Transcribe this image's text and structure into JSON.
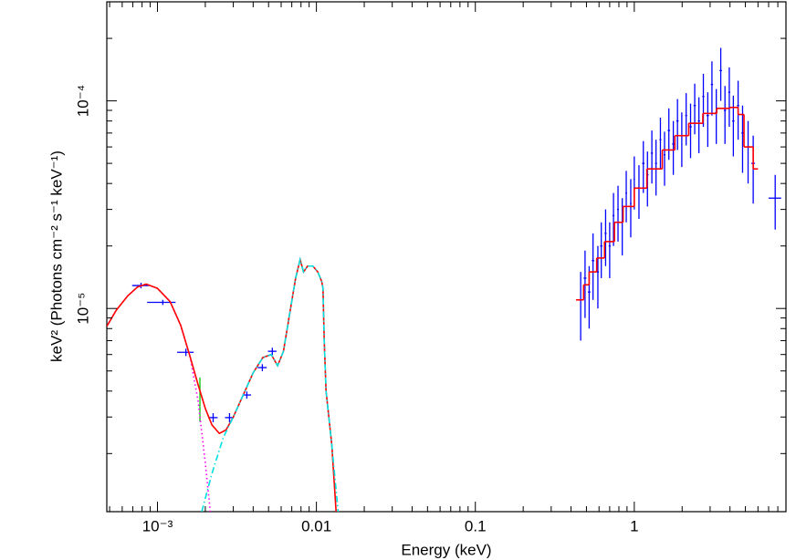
{
  "chart_data": {
    "type": "spectrum",
    "xlabel": "Energy (keV)",
    "ylabel": "keV² (Photons cm⁻² s⁻¹ keV⁻¹)",
    "xscale": "log",
    "yscale": "log",
    "xlim": [
      0.00048,
      9
    ],
    "ylim": [
      1.05e-06,
      0.0003
    ],
    "xticks": [
      {
        "value": 0.001,
        "label": "10⁻³"
      },
      0.01,
      0.1,
      1
    ],
    "yticks": [
      {
        "value": 1e-05,
        "label": "10⁻⁵"
      },
      {
        "value": 0.0001,
        "label": "10⁻⁴"
      }
    ],
    "xminor": [
      0.0005,
      0.0006,
      0.0007,
      0.0008,
      0.0009,
      0.002,
      0.003,
      0.004,
      0.005,
      0.006,
      0.007,
      0.008,
      0.009,
      0.02,
      0.03,
      0.04,
      0.05,
      0.06,
      0.07,
      0.08,
      0.09,
      0.2,
      0.3,
      0.4,
      0.5,
      0.6,
      0.7,
      0.8,
      0.9,
      2,
      3,
      4,
      5,
      6,
      7,
      8
    ],
    "yminor": [
      2e-06,
      3e-06,
      4e-06,
      5e-06,
      6e-06,
      7e-06,
      8e-06,
      9e-06,
      2e-05,
      3e-05,
      4e-05,
      5e-05,
      6e-05,
      7e-05,
      8e-05,
      9e-05,
      0.0002
    ],
    "series": [
      {
        "kind": "line",
        "color": "#ff00ff",
        "dash": "dotted",
        "x": [
          0.00048,
          0.00055,
          0.00065,
          0.00075,
          0.00085,
          0.001,
          0.0012,
          0.0014,
          0.0016,
          0.0018,
          0.002,
          0.00215
        ],
        "values": [
          8.2e-06,
          9.8e-06,
          1.15e-05,
          1.27e-05,
          1.31e-05,
          1.25e-05,
          1.08e-05,
          8.3e-06,
          5.9e-06,
          3.6e-06,
          1.8e-06,
          1.05e-06
        ]
      },
      {
        "kind": "line",
        "color": "#ff0000",
        "dash": "solid",
        "x": [
          0.00048,
          0.00055,
          0.00065,
          0.00075,
          0.00085,
          0.001,
          0.0012,
          0.0014,
          0.0016,
          0.0018,
          0.002,
          0.0022,
          0.00245,
          0.0027,
          0.003,
          0.0035,
          0.004,
          0.0046,
          0.0052,
          0.0057,
          0.0062,
          0.0068,
          0.0074,
          0.0079,
          0.0083,
          0.0088,
          0.0095,
          0.0102,
          0.0108,
          0.011,
          0.0112,
          0.0115,
          0.0125,
          0.0133
        ],
        "values": [
          8.2e-06,
          9.8e-06,
          1.15e-05,
          1.27e-05,
          1.31e-05,
          1.25e-05,
          1.08e-05,
          8.3e-06,
          5.9e-06,
          4.3e-06,
          3.3e-06,
          2.75e-06,
          2.5e-06,
          2.6e-06,
          3e-06,
          3.9e-06,
          4.9e-06,
          5.8e-06,
          6e-06,
          5.3e-06,
          6.2e-06,
          9.5e-06,
          1.4e-05,
          1.72e-05,
          1.5e-05,
          1.6e-05,
          1.6e-05,
          1.5e-05,
          1.35e-05,
          1.25e-05,
          7e-06,
          4e-06,
          2.2e-06,
          1.05e-06
        ]
      },
      {
        "kind": "line",
        "color": "#00e0e0",
        "dash": "dashdot",
        "x": [
          0.0019,
          0.0022,
          0.0026,
          0.003,
          0.0035,
          0.004,
          0.0046,
          0.0052,
          0.0057,
          0.0062,
          0.0068,
          0.0074,
          0.0079,
          0.0083,
          0.0088,
          0.0095,
          0.0102,
          0.0108,
          0.011,
          0.0112,
          0.0115,
          0.0125,
          0.0137
        ],
        "values": [
          1.05e-06,
          1.6e-06,
          2.4e-06,
          3e-06,
          3.9e-06,
          4.9e-06,
          5.8e-06,
          6e-06,
          5.3e-06,
          6.2e-06,
          9.5e-06,
          1.4e-05,
          1.72e-05,
          1.5e-05,
          1.6e-05,
          1.6e-05,
          1.5e-05,
          1.35e-05,
          1.25e-05,
          7e-06,
          4e-06,
          2.2e-06,
          1.05e-06
        ]
      },
      {
        "kind": "errorbar",
        "color": "#0000ff",
        "x": [
          0.000788,
          0.00108,
          0.00151,
          0.00224,
          0.00284,
          0.00365,
          0.00457,
          0.00528
        ],
        "xerr": [
          9.5e-05,
          0.00022,
          0.00018,
          0.00015,
          0.00018,
          0.00023,
          0.0003,
          0.00033
        ],
        "values": [
          1.29e-05,
          1.07e-05,
          6.15e-06,
          2.98e-06,
          2.98e-06,
          3.83e-06,
          5.19e-06,
          6.22e-06
        ],
        "yerr": [
          4e-07,
          3e-07,
          2.5e-07,
          1.5e-07,
          1.5e-07,
          1.5e-07,
          2e-07,
          2.5e-07
        ]
      },
      {
        "kind": "errorbar",
        "color": "#00cc00",
        "x": [
          0.00185
        ],
        "values": [
          3.75e-06
        ],
        "yerr": [
          9e-07
        ]
      },
      {
        "kind": "errorbar",
        "color": "#0000ff",
        "x": [
          0.46,
          0.49,
          0.52,
          0.55,
          0.59,
          0.62,
          0.66,
          0.7,
          0.74,
          0.79,
          0.84,
          0.89,
          0.95,
          1.0,
          1.07,
          1.14,
          1.21,
          1.29,
          1.37,
          1.46,
          1.55,
          1.65,
          1.76,
          1.87,
          1.99,
          2.12,
          2.26,
          2.4,
          2.55,
          2.72,
          2.9,
          3.08,
          3.28,
          3.5,
          3.72,
          3.96,
          4.2,
          4.5,
          4.8,
          5.2,
          5.6,
          7.7
        ],
        "xerr": [
          0.01,
          0.01,
          0.01,
          0.01,
          0.01,
          0.01,
          0.01,
          0.01,
          0.01,
          0.01,
          0.01,
          0.01,
          0.01,
          0.01,
          0.02,
          0.02,
          0.02,
          0.02,
          0.02,
          0.02,
          0.02,
          0.03,
          0.03,
          0.03,
          0.03,
          0.03,
          0.04,
          0.04,
          0.04,
          0.04,
          0.05,
          0.05,
          0.05,
          0.06,
          0.06,
          0.06,
          0.07,
          0.07,
          0.08,
          0.1,
          0.15,
          0.7
        ],
        "values": [
          1.1e-05,
          1.4e-05,
          1.2e-05,
          1.7e-05,
          1.5e-05,
          2e-05,
          2.3e-05,
          2e-05,
          2.8e-05,
          3e-05,
          2.6e-05,
          3.6e-05,
          3.2e-05,
          4.2e-05,
          3.8e-05,
          5e-05,
          4.4e-05,
          5.6e-05,
          5e-05,
          6.5e-05,
          5.5e-05,
          7.2e-05,
          6.2e-05,
          8e-05,
          6.8e-05,
          8.5e-05,
          7.5e-05,
          9.5e-05,
          8e-05,
          0.000105,
          8.5e-05,
          0.00012,
          8.8e-05,
          0.00014,
          9e-05,
          0.00011,
          8e-05,
          9.5e-05,
          7e-05,
          6e-05,
          5e-05,
          3.4e-05
        ],
        "yerr": [
          4e-06,
          5e-06,
          4e-06,
          6e-06,
          5e-06,
          6e-06,
          7e-06,
          6e-06,
          8e-06,
          9e-06,
          8e-06,
          1e-05,
          1e-05,
          1.2e-05,
          1.1e-05,
          1.4e-05,
          1.3e-05,
          1.6e-05,
          1.5e-05,
          1.8e-05,
          1.6e-05,
          2e-05,
          1.8e-05,
          2.2e-05,
          2e-05,
          2.4e-05,
          2.2e-05,
          2.6e-05,
          2.4e-05,
          3e-05,
          2.5e-05,
          3.5e-05,
          2.6e-05,
          4e-05,
          2.8e-05,
          3.5e-05,
          2.6e-05,
          3e-05,
          2.5e-05,
          2e-05,
          1.8e-05,
          1e-05
        ]
      },
      {
        "kind": "step",
        "color": "#ff0000",
        "bins": [
          0.43,
          0.48,
          0.52,
          0.58,
          0.65,
          0.75,
          0.85,
          1.0,
          1.2,
          1.5,
          1.8,
          2.2,
          2.7,
          3.3,
          4.0,
          4.5,
          4.9,
          5.6,
          6.0
        ],
        "values": [
          1.1e-05,
          1.3e-05,
          1.5e-05,
          1.75e-05,
          2.1e-05,
          2.6e-05,
          3.1e-05,
          3.8e-05,
          4.7e-05,
          5.8e-05,
          6.8e-05,
          7.8e-05,
          8.7e-05,
          9.2e-05,
          9.3e-05,
          8.6e-05,
          6e-05,
          4.7e-05
        ]
      }
    ]
  }
}
